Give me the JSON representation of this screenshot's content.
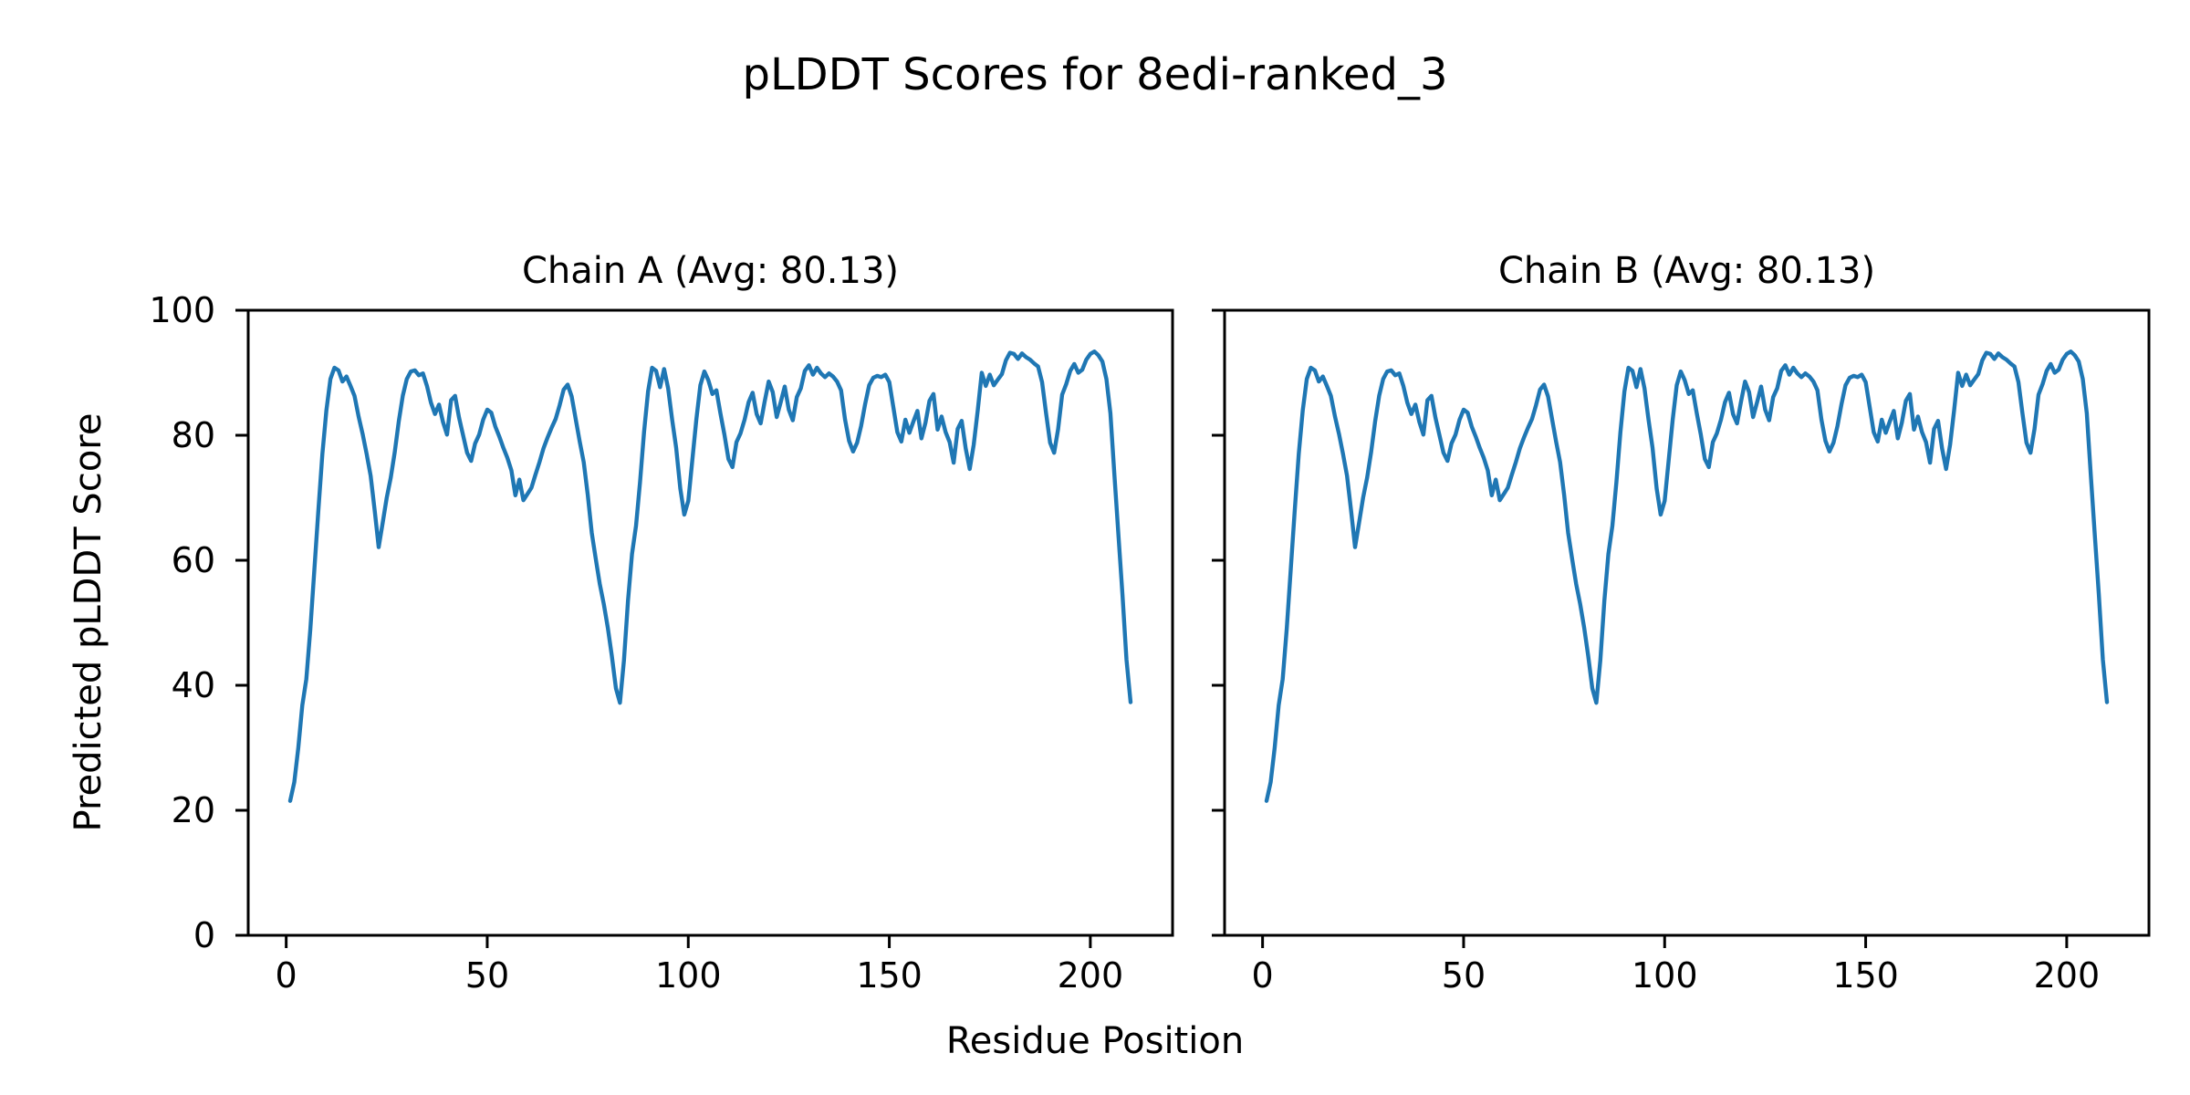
{
  "figure": {
    "suptitle": "pLDDT Scores for 8edi-ranked_3",
    "xlabel": "Residue Position",
    "ylabel": "Predicted pLDDT Score",
    "background_color": "#ffffff",
    "text_color": "#000000",
    "axis_color": "#000000"
  },
  "chart_data": [
    {
      "type": "line",
      "title": "Chain A (Avg: 80.13)",
      "chain": "A",
      "average_plddt": 80.13,
      "line_color": "#1f77b4",
      "xlim": [
        -9.45,
        220.45
      ],
      "ylim": [
        0,
        100
      ],
      "xticks": [
        0,
        50,
        100,
        150,
        200
      ],
      "yticks": [
        0,
        20,
        40,
        60,
        80,
        100
      ],
      "show_y_tick_labels": true,
      "x_start_residue": 1,
      "grid": false,
      "legend": false,
      "values": [
        21.5,
        24.5,
        30,
        36.8,
        41,
        49,
        58.5,
        68,
        77,
        84,
        89,
        90.8,
        90.4,
        88.6,
        89.4,
        87.9,
        86.3,
        83,
        80.2,
        77,
        73.5,
        68,
        62.1,
        66,
        70,
        73.2,
        77.3,
        82.2,
        86.3,
        89,
        90.2,
        90.4,
        89.6,
        89.9,
        87.9,
        85.2,
        83.4,
        84.9,
        82.1,
        80.1,
        85.6,
        86.3,
        82.8,
        80,
        77.2,
        75.9,
        78.7,
        80.1,
        82.5,
        84.1,
        83.6,
        81.4,
        79.8,
        78,
        76.4,
        74.4,
        70.4,
        72.9,
        69.6,
        70.6,
        71.6,
        73.7,
        75.7,
        77.9,
        79.6,
        81.2,
        82.6,
        84.8,
        87.3,
        88.1,
        86.2,
        82.6,
        79,
        75.7,
        70.5,
        64.4,
        60.2,
        56.2,
        53,
        49.2,
        44.7,
        39.5,
        37.2,
        44,
        53.5,
        61,
        65.5,
        72.5,
        80.5,
        87,
        90.8,
        90.3,
        87.7,
        90.6,
        87.5,
        82.5,
        78,
        71.5,
        67.3,
        69.5,
        76,
        82.5,
        88,
        90.2,
        88.8,
        86.6,
        87.2,
        83.5,
        80.1,
        76.2,
        74.9,
        78.9,
        80.3,
        82.5,
        85.3,
        86.8,
        83.4,
        81.9,
        85.4,
        88.6,
        86.9,
        82.9,
        85.3,
        87.8,
        84.1,
        82.4,
        86.1,
        87.5,
        90.3,
        91.2,
        89.7,
        90.8,
        89.9,
        89.3,
        89.9,
        89.4,
        88.6,
        87.2,
        82.5,
        79.1,
        77.4,
        78.8,
        81.5,
        85,
        88,
        89.2,
        89.5,
        89.3,
        89.7,
        88.5,
        84.5,
        80.5,
        79,
        82.5,
        80.4,
        82.2,
        83.9,
        79.5,
        82,
        85.5,
        86.6,
        80.9,
        83,
        80.5,
        78.9,
        75.6,
        81,
        82.3,
        77.9,
        74.6,
        78.5,
        84,
        90,
        87.9,
        89.7,
        88,
        88.9,
        89.8,
        92,
        93.2,
        93,
        92.2,
        93.1,
        92.5,
        92.1,
        91.5,
        91,
        88.5,
        83.5,
        78.8,
        77.2,
        81,
        86.5,
        88.2,
        90.3,
        91.4,
        90,
        90.5,
        92.1,
        93,
        93.4,
        92.8,
        91.8,
        89,
        83.5,
        73.6,
        64,
        54.5,
        44.1,
        37.3
      ]
    },
    {
      "type": "line",
      "title": "Chain B (Avg: 80.13)",
      "chain": "B",
      "average_plddt": 80.13,
      "line_color": "#1f77b4",
      "xlim": [
        -9.45,
        220.45
      ],
      "ylim": [
        0,
        100
      ],
      "xticks": [
        0,
        50,
        100,
        150,
        200
      ],
      "yticks": [
        0,
        20,
        40,
        60,
        80,
        100
      ],
      "show_y_tick_labels": false,
      "x_start_residue": 1,
      "grid": false,
      "legend": false,
      "values": [
        21.5,
        24.5,
        30,
        36.8,
        41,
        49,
        58.5,
        68,
        77,
        84,
        89,
        90.8,
        90.4,
        88.6,
        89.4,
        87.9,
        86.3,
        83,
        80.2,
        77,
        73.5,
        68,
        62.1,
        66,
        70,
        73.2,
        77.3,
        82.2,
        86.3,
        89,
        90.2,
        90.4,
        89.6,
        89.9,
        87.9,
        85.2,
        83.4,
        84.9,
        82.1,
        80.1,
        85.6,
        86.3,
        82.8,
        80,
        77.2,
        75.9,
        78.7,
        80.1,
        82.5,
        84.1,
        83.6,
        81.4,
        79.8,
        78,
        76.4,
        74.4,
        70.4,
        72.9,
        69.6,
        70.6,
        71.6,
        73.7,
        75.7,
        77.9,
        79.6,
        81.2,
        82.6,
        84.8,
        87.3,
        88.1,
        86.2,
        82.6,
        79,
        75.7,
        70.5,
        64.4,
        60.2,
        56.2,
        53,
        49.2,
        44.7,
        39.5,
        37.2,
        44,
        53.5,
        61,
        65.5,
        72.5,
        80.5,
        87,
        90.8,
        90.3,
        87.7,
        90.6,
        87.5,
        82.5,
        78,
        71.5,
        67.3,
        69.5,
        76,
        82.5,
        88,
        90.2,
        88.8,
        86.6,
        87.2,
        83.5,
        80.1,
        76.2,
        74.9,
        78.9,
        80.3,
        82.5,
        85.3,
        86.8,
        83.4,
        81.9,
        85.4,
        88.6,
        86.9,
        82.9,
        85.3,
        87.8,
        84.1,
        82.4,
        86.1,
        87.5,
        90.3,
        91.2,
        89.7,
        90.8,
        89.9,
        89.3,
        89.9,
        89.4,
        88.6,
        87.2,
        82.5,
        79.1,
        77.4,
        78.8,
        81.5,
        85,
        88,
        89.2,
        89.5,
        89.3,
        89.7,
        88.5,
        84.5,
        80.5,
        79,
        82.5,
        80.4,
        82.2,
        83.9,
        79.5,
        82,
        85.5,
        86.6,
        80.9,
        83,
        80.5,
        78.9,
        75.6,
        81,
        82.3,
        77.9,
        74.6,
        78.5,
        84,
        90,
        87.9,
        89.7,
        88,
        88.9,
        89.8,
        92,
        93.2,
        93,
        92.2,
        93.1,
        92.5,
        92.1,
        91.5,
        91,
        88.5,
        83.5,
        78.8,
        77.2,
        81,
        86.5,
        88.2,
        90.3,
        91.4,
        90,
        90.5,
        92.1,
        93,
        93.4,
        92.8,
        91.8,
        89,
        83.5,
        73.6,
        64,
        54.5,
        44.1,
        37.3
      ]
    }
  ]
}
